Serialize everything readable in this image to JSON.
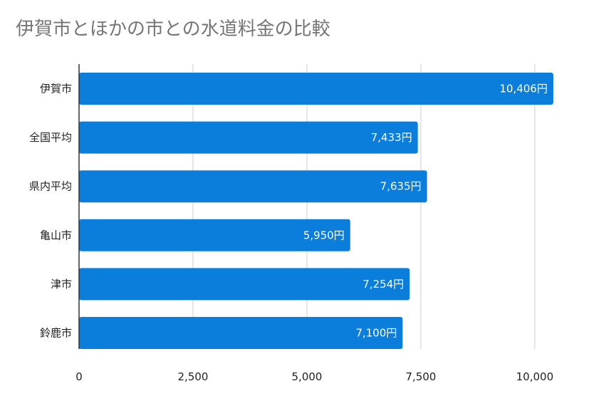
{
  "chart_data": {
    "type": "bar",
    "orientation": "horizontal",
    "title": "伊賀市とほかの市との水道料金の比較",
    "categories": [
      "伊賀市",
      "全国平均",
      "県内平均",
      "亀山市",
      "津市",
      "鈴鹿市"
    ],
    "values": [
      10406,
      7433,
      7635,
      5950,
      7254,
      7100
    ],
    "data_labels": [
      "10,406円",
      "7,433円",
      "7,635円",
      "5,950円",
      "7,254円",
      "7,100円"
    ],
    "x_ticks": [
      0,
      2500,
      5000,
      7500,
      10000
    ],
    "x_tick_labels": [
      "0",
      "2,500",
      "5,000",
      "7,500",
      "10,000"
    ],
    "xlim": [
      0,
      11000
    ],
    "grid": true,
    "legend": "none",
    "bar_color": "#0b7dda",
    "grid_color": "#cccccc",
    "axis_color": "#333333"
  }
}
